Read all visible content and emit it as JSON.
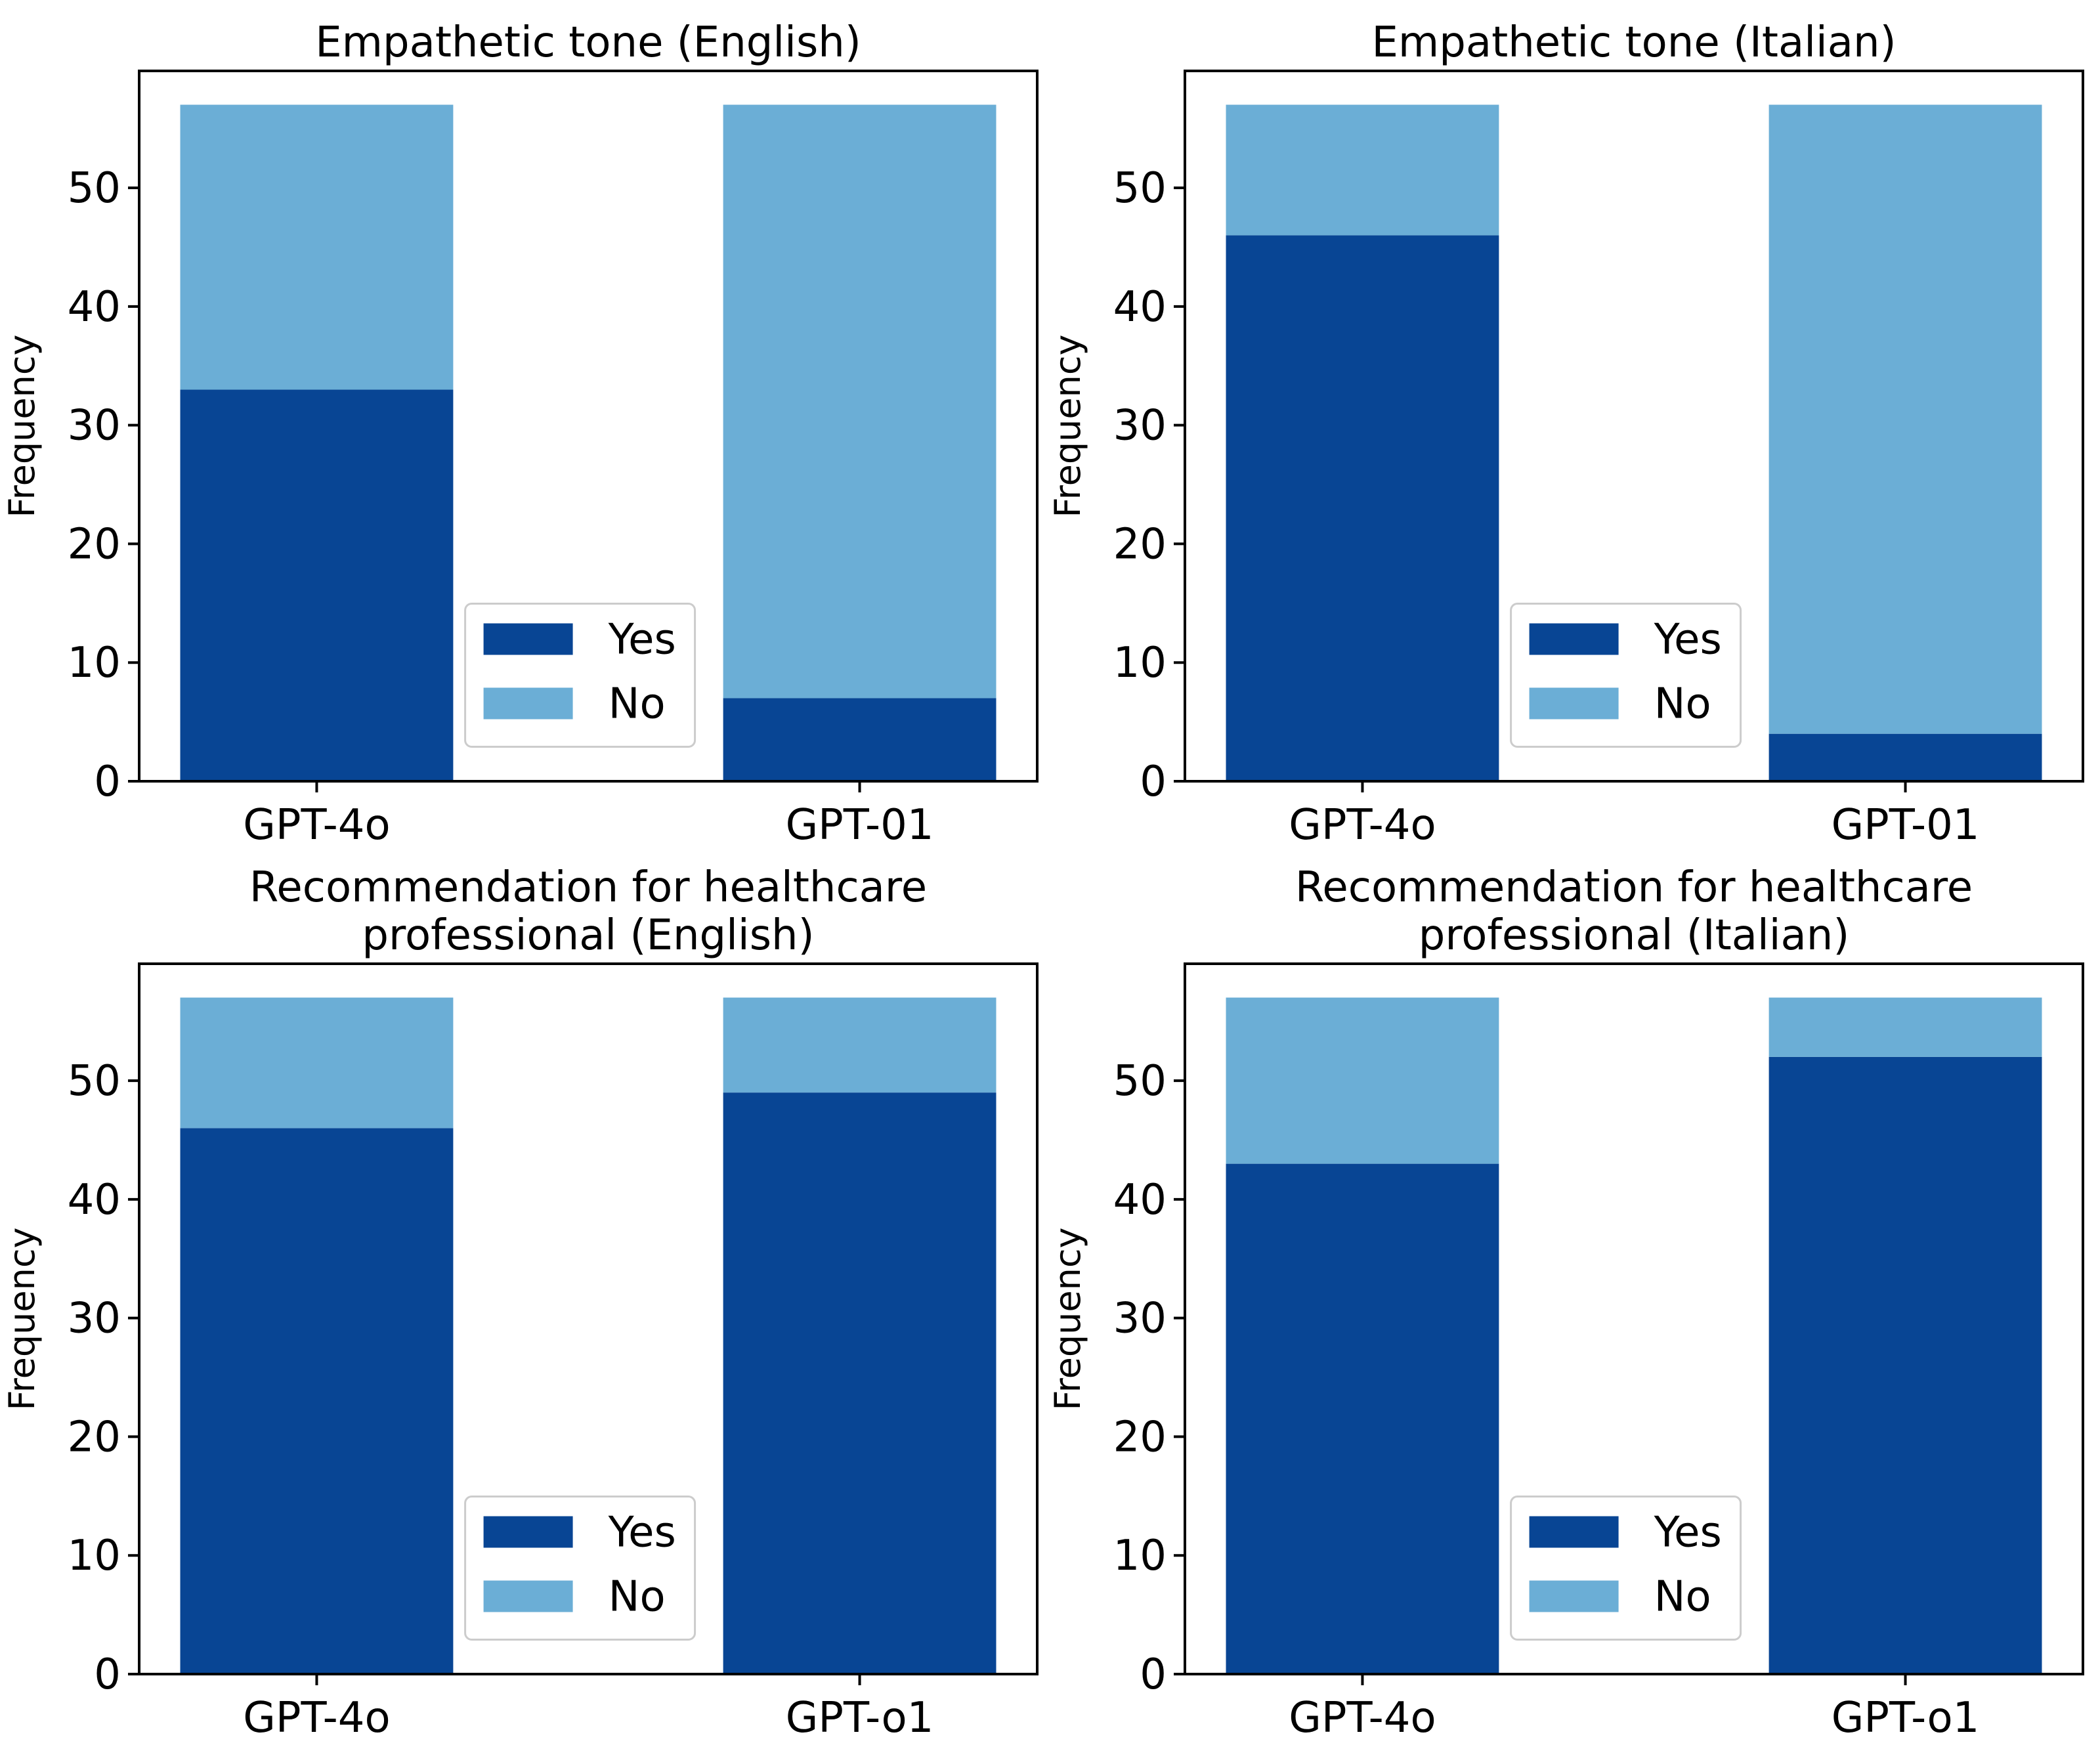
{
  "colors": {
    "yes": "#084594",
    "no": "#6baed6",
    "legend_border": "#cccccc"
  },
  "chart_data": [
    {
      "type": "bar",
      "stacked": true,
      "title_lines": [
        "Empathetic tone (English)"
      ],
      "categories": [
        "GPT-4o",
        "GPT-01"
      ],
      "series": [
        {
          "name": "Yes",
          "values": [
            33,
            7
          ]
        },
        {
          "name": "No",
          "values": [
            24,
            50
          ]
        }
      ],
      "xlabel": "",
      "ylabel": "Frequency",
      "ylim": [
        0,
        59.85
      ],
      "yticks": [
        0,
        10,
        20,
        30,
        40,
        50
      ],
      "legend": {
        "position": "lower-center",
        "entries": [
          "Yes",
          "No"
        ]
      }
    },
    {
      "type": "bar",
      "stacked": true,
      "title_lines": [
        "Empathetic tone (Italian)"
      ],
      "categories": [
        "GPT-4o",
        "GPT-01"
      ],
      "series": [
        {
          "name": "Yes",
          "values": [
            46,
            4
          ]
        },
        {
          "name": "No",
          "values": [
            11,
            53
          ]
        }
      ],
      "xlabel": "",
      "ylabel": "Frequency",
      "ylim": [
        0,
        59.85
      ],
      "yticks": [
        0,
        10,
        20,
        30,
        40,
        50
      ],
      "legend": {
        "position": "lower-center",
        "entries": [
          "Yes",
          "No"
        ]
      }
    },
    {
      "type": "bar",
      "stacked": true,
      "title_lines": [
        "Recommendation for healthcare",
        "professional (English)"
      ],
      "categories": [
        "GPT-4o",
        "GPT-o1"
      ],
      "series": [
        {
          "name": "Yes",
          "values": [
            46,
            49
          ]
        },
        {
          "name": "No",
          "values": [
            11,
            8
          ]
        }
      ],
      "xlabel": "",
      "ylabel": "Frequency",
      "ylim": [
        0,
        59.85
      ],
      "yticks": [
        0,
        10,
        20,
        30,
        40,
        50
      ],
      "legend": {
        "position": "lower-center",
        "entries": [
          "Yes",
          "No"
        ]
      }
    },
    {
      "type": "bar",
      "stacked": true,
      "title_lines": [
        "Recommendation for healthcare",
        "professional (Italian)"
      ],
      "categories": [
        "GPT-4o",
        "GPT-o1"
      ],
      "series": [
        {
          "name": "Yes",
          "values": [
            43,
            52
          ]
        },
        {
          "name": "No",
          "values": [
            14,
            5
          ]
        }
      ],
      "xlabel": "",
      "ylabel": "Frequency",
      "ylim": [
        0,
        59.85
      ],
      "yticks": [
        0,
        10,
        20,
        30,
        40,
        50
      ],
      "legend": {
        "position": "lower-center",
        "entries": [
          "Yes",
          "No"
        ]
      }
    }
  ]
}
